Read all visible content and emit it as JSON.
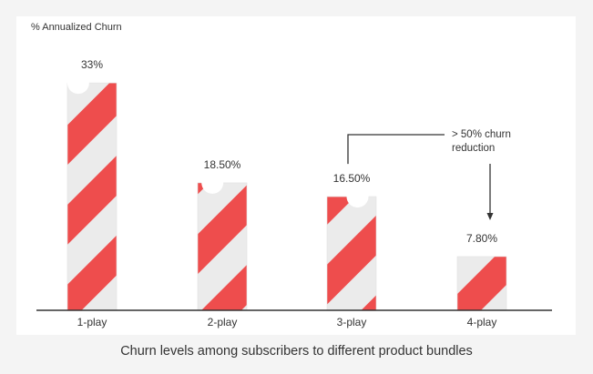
{
  "caption": "Churn levels among subscribers to different product bundles",
  "chart_data": {
    "type": "bar",
    "ylabel": "% Annualized Churn",
    "categories": [
      "1-play",
      "2-play",
      "3-play",
      "4-play"
    ],
    "values": [
      33,
      18.5,
      16.5,
      7.8
    ],
    "data_labels": [
      "33%",
      "18.50%",
      "16.50%",
      "7.80%"
    ],
    "ylim": [
      0,
      35
    ],
    "grid": false,
    "legend": "none",
    "annotation": {
      "text": [
        "> 50% churn",
        "reduction"
      ],
      "from_category": "3-play",
      "to_category": "4-play"
    },
    "colors": {
      "stripe": "#ee4d4d",
      "stripe_alt": "#ebebeb",
      "axis": "#333333",
      "text": "#333333"
    }
  }
}
